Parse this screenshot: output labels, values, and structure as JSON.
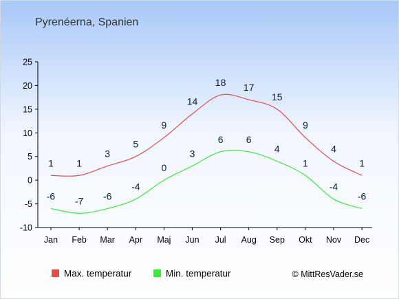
{
  "chart_data": {
    "type": "line",
    "title": "Pyrenéerna, Spanien",
    "categories": [
      "Jan",
      "Feb",
      "Mar",
      "Apr",
      "Maj",
      "Jun",
      "Jul",
      "Aug",
      "Sep",
      "Okt",
      "Nov",
      "Dec"
    ],
    "series": [
      {
        "name": "Max. temperatur",
        "color": "#e84a4a",
        "values": [
          1,
          1,
          3,
          5,
          9,
          14,
          18,
          17,
          15,
          9,
          4,
          1
        ]
      },
      {
        "name": "Min. temperatur",
        "color": "#3be83b",
        "values": [
          -6,
          -7,
          -6,
          -4,
          0,
          3,
          6,
          6,
          4,
          1,
          -4,
          -6
        ]
      }
    ],
    "ylim": [
      -10,
      25
    ],
    "yticks": [
      -10,
      -5,
      0,
      5,
      10,
      15,
      20,
      25
    ],
    "grid": false,
    "legend_position": "bottom-left"
  },
  "credit": "© MittResVader.se",
  "colors": {
    "background_top": "#a8c8f8",
    "background_bottom": "#ffffff"
  }
}
